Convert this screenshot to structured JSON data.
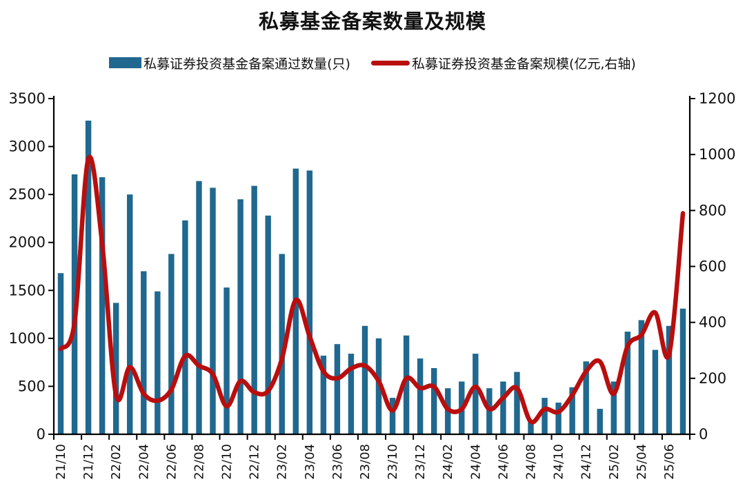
{
  "title": "私募基金备案数量及规模",
  "legend": {
    "bar_label": "私募证券投资基金备案通过数量(只)",
    "line_label": "私募证券投资基金备案规模(亿元,右轴)"
  },
  "colors": {
    "bar": "#20688F",
    "line": "#B90E0E",
    "axis": "#000000",
    "text": "#111111"
  },
  "chart_data": {
    "type": "bar+line",
    "title": "私募基金备案数量及规模",
    "categories": [
      "21/10",
      "21/11",
      "21/12",
      "22/01",
      "22/02",
      "22/03",
      "22/04",
      "22/05",
      "22/06",
      "22/07",
      "22/08",
      "22/09",
      "22/10",
      "22/11",
      "22/12",
      "23/01",
      "23/02",
      "23/03",
      "23/04",
      "23/05",
      "23/06",
      "23/07",
      "23/08",
      "23/09",
      "23/10",
      "23/11",
      "23/12",
      "24/01",
      "24/02",
      "24/03",
      "24/04",
      "24/05",
      "24/06",
      "24/07",
      "24/08",
      "24/09",
      "24/10",
      "24/11",
      "24/12",
      "25/01",
      "25/02",
      "25/03",
      "25/04",
      "25/05",
      "25/06",
      "25/07"
    ],
    "x_tick_labels": [
      "21/10",
      "21/12",
      "22/02",
      "22/04",
      "22/06",
      "22/08",
      "22/10",
      "22/12",
      "23/02",
      "23/04",
      "23/06",
      "23/08",
      "23/10",
      "23/12",
      "24/02",
      "24/04",
      "24/06",
      "24/08",
      "24/10",
      "24/12",
      "25/02",
      "25/04",
      "25/06"
    ],
    "label_interval": 2,
    "series": [
      {
        "name": "私募证券投资基金备案通过数量(只)",
        "type": "bar",
        "axis": "left",
        "values": [
          1680,
          2710,
          3270,
          2680,
          1370,
          2500,
          1700,
          1490,
          1880,
          2230,
          2640,
          2570,
          1530,
          2450,
          2590,
          2280,
          1880,
          2770,
          2750,
          820,
          940,
          840,
          1130,
          1000,
          380,
          1030,
          790,
          690,
          480,
          550,
          840,
          480,
          550,
          650,
          150,
          380,
          330,
          490,
          760,
          265,
          550,
          1070,
          1190,
          880,
          1130,
          1310
        ]
      },
      {
        "name": "私募证券投资基金备案规模(亿元,右轴)",
        "type": "line",
        "axis": "right",
        "values": [
          305,
          400,
          985,
          680,
          140,
          240,
          145,
          120,
          160,
          280,
          245,
          215,
          100,
          190,
          150,
          155,
          270,
          480,
          350,
          225,
          200,
          235,
          245,
          190,
          85,
          200,
          165,
          170,
          90,
          90,
          170,
          90,
          130,
          165,
          45,
          90,
          80,
          140,
          225,
          260,
          145,
          315,
          355,
          435,
          285,
          790
        ]
      }
    ],
    "left_axis": {
      "min": 0,
      "max": 3500,
      "step": 500,
      "ticks": [
        "0",
        "500",
        "1000",
        "1500",
        "2000",
        "2500",
        "3000",
        "3500"
      ]
    },
    "right_axis": {
      "min": 0,
      "max": 1200,
      "step": 200,
      "ticks": [
        "0",
        "200",
        "400",
        "600",
        "800",
        "1000",
        "1200"
      ]
    },
    "grid": false,
    "legend_position": "top"
  }
}
